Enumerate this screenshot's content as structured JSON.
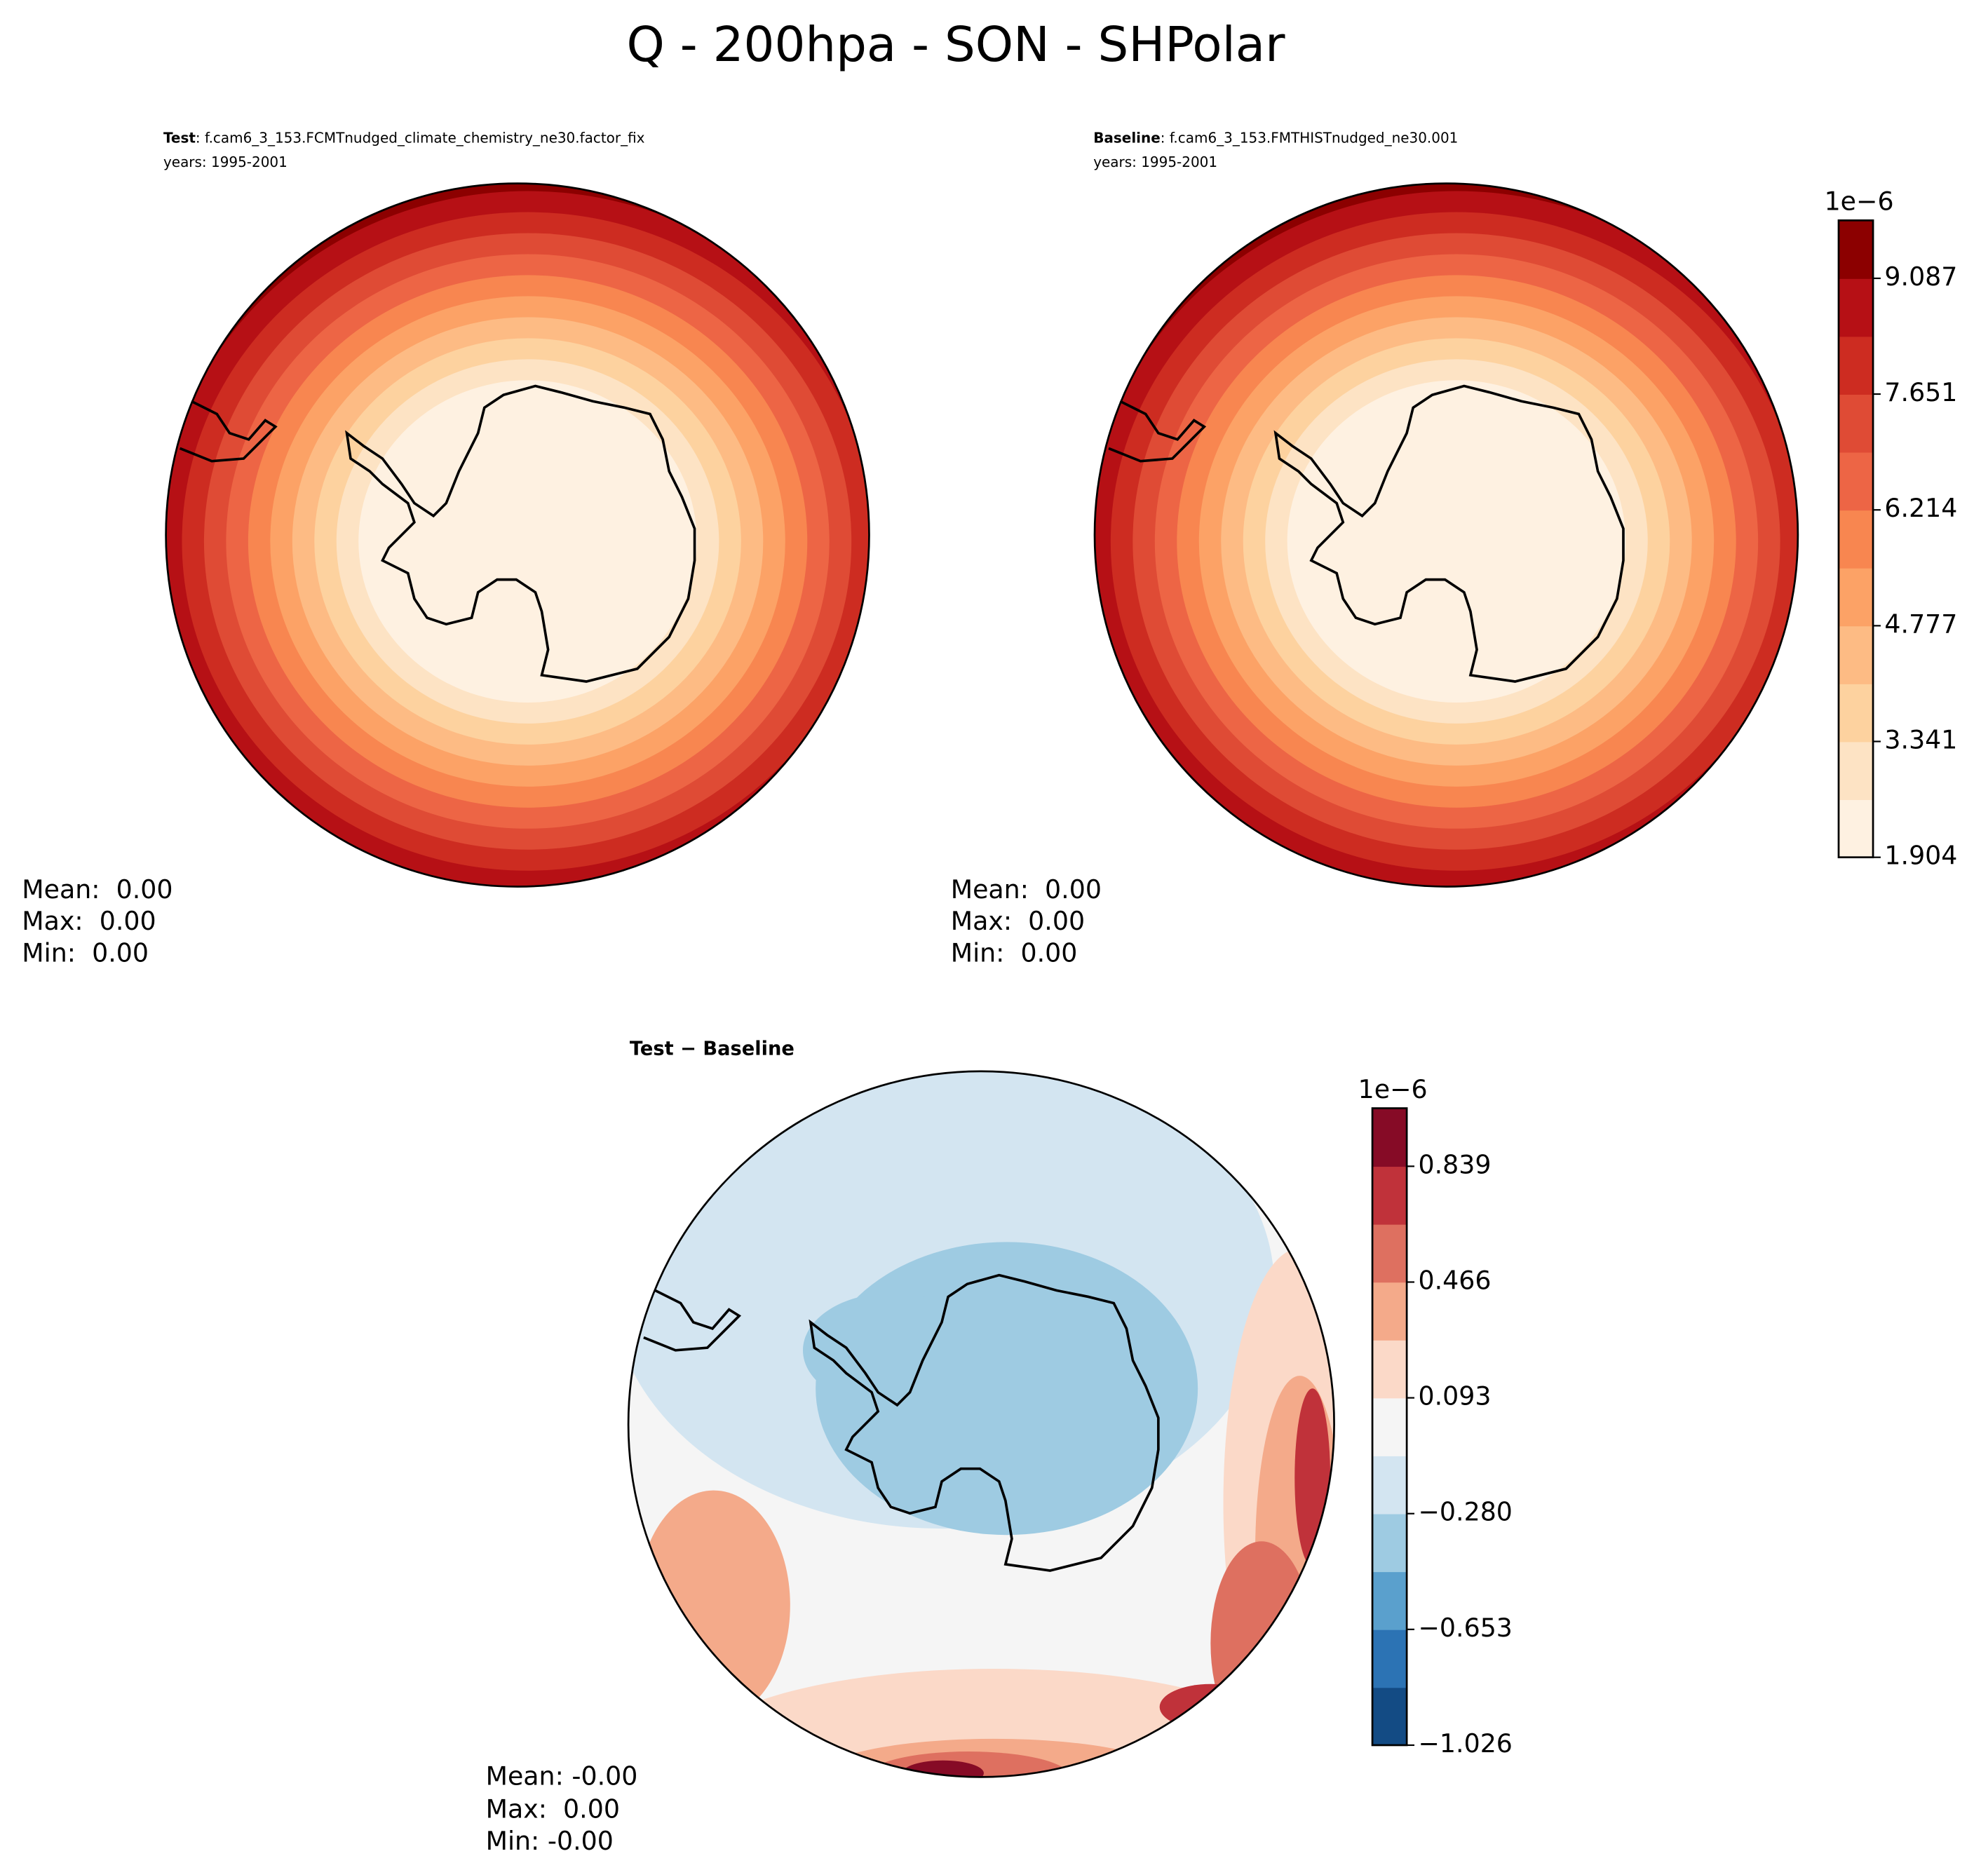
{
  "suptitle": "Q - 200hpa - SON - SHPolar",
  "chart_data": [
    {
      "type": "map",
      "title": "Test",
      "subtitle": ": f.cam6_3_153.FCMTnudged_climate_chemistry_ne30.factor_fix",
      "note": "years: 1995-2001",
      "stats": [
        "Mean:  0.00",
        "Max:  0.00",
        "Min:  0.00"
      ]
    },
    {
      "type": "map",
      "title": "Baseline",
      "subtitle": ": f.cam6_3_153.FMTHISTnudged_ne30.001",
      "note": "years: 1995-2001",
      "stats": [
        "Mean:  0.00",
        "Max:  0.00",
        "Min:  0.00"
      ],
      "colorbar": {
        "offset": "1e−6",
        "ylim": [
          1.904,
          9.806
        ],
        "yticks": [
          1.904,
          3.341,
          4.777,
          6.214,
          7.651,
          9.087
        ],
        "colors": [
          "#fef1e1",
          "#fde3c4",
          "#fdd29f",
          "#fdbb84",
          "#fca266",
          "#f88650",
          "#ed6545",
          "#df4b35",
          "#cd2c21",
          "#b61015",
          "#8c0000"
        ]
      }
    },
    {
      "type": "map",
      "title": "Test − Baseline",
      "stats": [
        "Mean: -0.00",
        "Max:  0.00",
        "Min: -0.00"
      ],
      "colorbar": {
        "offset": "1e−6",
        "ylim": [
          -1.026,
          1.026
        ],
        "yticks": [
          {
            "value": -1.026,
            "label": "−1.026"
          },
          {
            "value": -0.653,
            "label": "−0.653"
          },
          {
            "value": -0.28,
            "label": "−0.280"
          },
          0.093,
          0.466,
          0.839
        ],
        "colors": [
          "#134b84",
          "#2c73b4",
          "#5aa0cd",
          "#9ecbe2",
          "#d3e5f1",
          "#f5f5f5",
          "#fbd9c8",
          "#f4aa8a",
          "#de7060",
          "#c0323a",
          "#860b26"
        ]
      }
    }
  ]
}
